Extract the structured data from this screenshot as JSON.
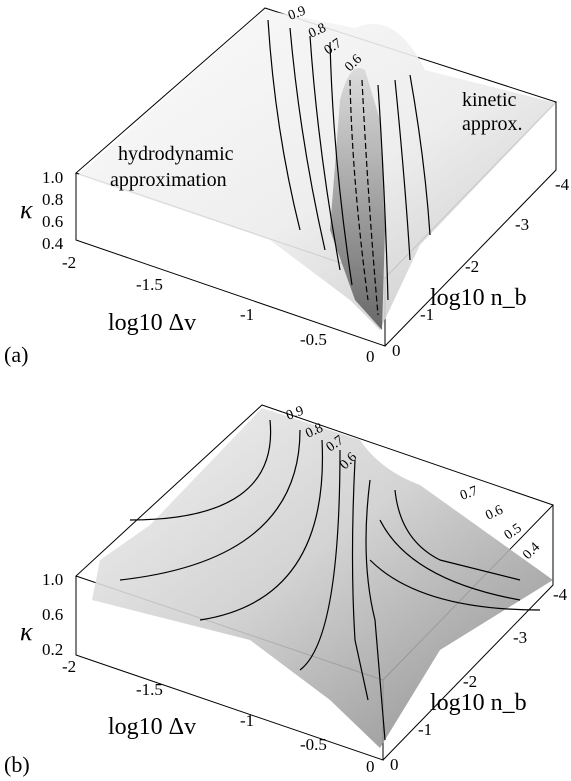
{
  "chart_data": [
    {
      "type": "surface",
      "panel_label": "(a)",
      "x_label": "log10 Δv",
      "y_label": "log10 n_b",
      "z_label": "κ",
      "x_ticks": [
        "-2",
        "-1.5",
        "-1",
        "-0.5",
        "0"
      ],
      "y_ticks": [
        "0",
        "-1",
        "-2",
        "-3",
        "-4"
      ],
      "z_ticks": [
        "1.0",
        "0.8",
        "0.6",
        "0.4"
      ],
      "xlim": [
        -2,
        0
      ],
      "ylim": [
        0,
        -4
      ],
      "zlim": [
        0.4,
        1.0
      ],
      "contour_levels": [
        "0.9",
        "0.8",
        "0.7",
        "0.6"
      ],
      "annotations": [
        "hydrodynamic",
        "approximation",
        "kinetic",
        "approx."
      ]
    },
    {
      "type": "surface",
      "panel_label": "(b)",
      "x_label": "log10 Δv",
      "y_label": "log10 n_b",
      "z_label": "κ",
      "x_ticks": [
        "-2",
        "-1.5",
        "-1",
        "-0.5",
        "0"
      ],
      "y_ticks": [
        "0",
        "-1",
        "-2",
        "-3",
        "-4"
      ],
      "z_ticks": [
        "1.0",
        "0.6",
        "0.2"
      ],
      "xlim": [
        -2,
        0
      ],
      "ylim": [
        0,
        -4
      ],
      "zlim": [
        0.2,
        1.0
      ],
      "contour_levels": [
        "0.9",
        "0.8",
        "0.7",
        "0.6"
      ],
      "contour_levels_right": [
        "0.7",
        "0.6",
        "0.5",
        "0.4"
      ]
    }
  ]
}
